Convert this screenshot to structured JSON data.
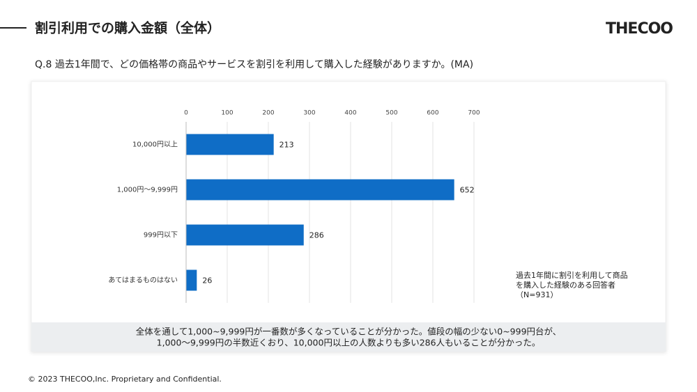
{
  "header": {
    "title": "割引利用での購入金額（全体）",
    "logo": "THECOO"
  },
  "chart_data": {
    "type": "hbar",
    "title": "Q.8 過去1年間で、どの価格帯の商品やサービスを割引を利用して購入した経験がありますか。(MA)",
    "categories": [
      "10,000円以上",
      "1,000円〜9,999円",
      "999円以下",
      "あてはまるものはない"
    ],
    "values": [
      213,
      652,
      286,
      26
    ],
    "color": "#0f6dc6",
    "xlim": [
      0,
      700
    ],
    "xticks": [
      0,
      100,
      200,
      300,
      400,
      500,
      600,
      700
    ],
    "grid": true,
    "annotation": [
      "過去1年間に割引を利用して商品",
      "を購入した経験のある回答者",
      "（N=931）"
    ]
  },
  "summary": [
    "全体を通して1,000~9,999円が一番数が多くなっていることが分かった。値段の幅の少ない0~999円台が、",
    "1,000〜9,999円の半数近くおり、10,000円以上の人数よりも多い286人もいることが分かった。"
  ],
  "footer": "© 2023 THECOO,Inc. Proprietary and Confidential."
}
